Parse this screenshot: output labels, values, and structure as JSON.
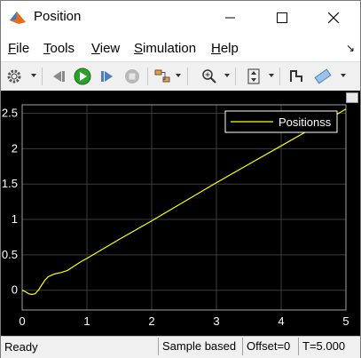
{
  "window": {
    "title": "Position"
  },
  "menu": {
    "items": [
      "File",
      "Tools",
      "View",
      "Simulation",
      "Help"
    ],
    "underline": [
      "F",
      "T",
      "V",
      "S",
      "H"
    ],
    "more_icon": "pin-arrow-icon"
  },
  "toolbar": {
    "icons": [
      "settings-icon",
      "step-back-icon",
      "run-icon",
      "step-forward-icon",
      "stop-icon",
      "highlight-block-icon",
      "zoom-icon",
      "autoscale-icon",
      "style-icon",
      "cursor-measurement-icon"
    ]
  },
  "chart_data": {
    "type": "line",
    "title": "",
    "xlabel": "",
    "ylabel": "",
    "xlim": [
      0,
      5
    ],
    "ylim": [
      -0.28,
      2.62
    ],
    "xticks": [
      0,
      1,
      2,
      3,
      4,
      5
    ],
    "xtick_labels": [
      "0",
      "1",
      "2",
      "3",
      "4",
      "5"
    ],
    "yticks": [
      0,
      0.5,
      1,
      1.5,
      2,
      2.5
    ],
    "ytick_labels": [
      "0",
      "0.5",
      "1",
      "1.5",
      "2",
      "2.5"
    ],
    "grid": true,
    "legend": "top-right",
    "background": "#000000",
    "axes_color": "#a0a0a0",
    "series": [
      {
        "name": "Positionss",
        "color": "#ffff00",
        "x": [
          0,
          0.05,
          0.1,
          0.15,
          0.2,
          0.25,
          0.3,
          0.35,
          0.4,
          0.45,
          0.5,
          0.6,
          0.7,
          0.8,
          0.9,
          1.0,
          1.5,
          2.0,
          2.5,
          3.0,
          3.5,
          4.0,
          4.5,
          5.0
        ],
        "values": [
          0,
          -0.02,
          -0.05,
          -0.06,
          -0.05,
          0.0,
          0.07,
          0.14,
          0.19,
          0.21,
          0.23,
          0.25,
          0.28,
          0.34,
          0.4,
          0.45,
          0.72,
          0.98,
          1.25,
          1.52,
          1.78,
          2.04,
          2.3,
          2.56
        ]
      }
    ]
  },
  "status": {
    "ready": "Ready",
    "mode": "Sample based",
    "offset": "Offset=0",
    "time": "T=5.000"
  }
}
